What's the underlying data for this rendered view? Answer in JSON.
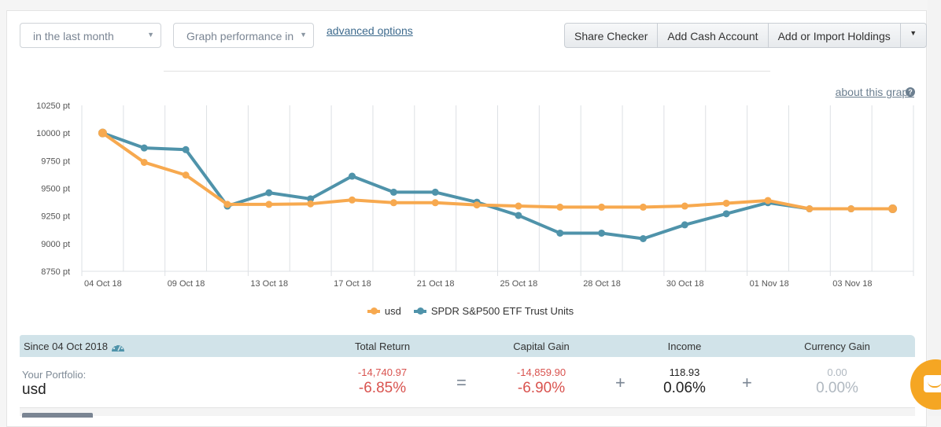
{
  "controls": {
    "period_select": "in the last month",
    "graph_select": "Graph performance in",
    "advanced_link": "advanced options",
    "buttons": [
      "Share Checker",
      "Add Cash Account",
      "Add or Import Holdings"
    ],
    "about_link": "about this graph",
    "about_icon": "question-circle-icon"
  },
  "chart_data": {
    "type": "line",
    "title": "",
    "xlabel": "",
    "ylabel": "",
    "ylim": [
      8750,
      10250
    ],
    "yticks": [
      "10250 pt",
      "10000 pt",
      "9750 pt",
      "9500 pt",
      "9250 pt",
      "9000 pt",
      "8750 pt"
    ],
    "ytick_values": [
      10250,
      10000,
      9750,
      9500,
      9250,
      9000,
      8750
    ],
    "xtick_labels": [
      "04 Oct 18",
      "09 Oct 18",
      "13 Oct 18",
      "17 Oct 18",
      "21 Oct 18",
      "25 Oct 18",
      "28 Oct 18",
      "30 Oct 18",
      "01 Nov 18",
      "03 Nov 18"
    ],
    "grid": true,
    "legend_position": "bottom-center",
    "series": [
      {
        "name": "usd",
        "color": "#f7a94f",
        "values": [
          10000,
          9735,
          9620,
          9355,
          9355,
          9360,
          9395,
          9370,
          9370,
          9350,
          9340,
          9330,
          9330,
          9330,
          9340,
          9365,
          9390,
          9315,
          9315,
          9315
        ]
      },
      {
        "name": "SPDR S&P500 ETF Trust Units",
        "color": "#4f93aa",
        "values": [
          10000,
          9865,
          9850,
          9340,
          9460,
          9405,
          9610,
          9465,
          9465,
          9375,
          9255,
          9095,
          9095,
          9045,
          9170,
          9270,
          9370,
          9315,
          9315,
          9315
        ]
      }
    ]
  },
  "summary": {
    "since_label": "Since 04 Oct 2018",
    "gauge_icon": "dashboard-gauge-icon",
    "columns": [
      "Total Return",
      "Capital Gain",
      "Income",
      "Currency Gain"
    ],
    "portfolio_label": "Your Portfolio:",
    "portfolio_name": "usd",
    "total_return": {
      "abs": "-14,740.97",
      "pct": "-6.85%"
    },
    "capital_gain": {
      "abs": "-14,859.90",
      "pct": "-6.90%"
    },
    "income": {
      "abs": "118.93",
      "pct": "0.06%"
    },
    "currency_gain": {
      "abs": "0.00",
      "pct": "0.00%"
    },
    "operators": [
      "=",
      "+",
      "+"
    ],
    "colors": {
      "negative": "#d9534f",
      "neutral": "#b0b8c0"
    }
  },
  "chat_widget": {
    "icon": "chat-bubble-icon"
  }
}
